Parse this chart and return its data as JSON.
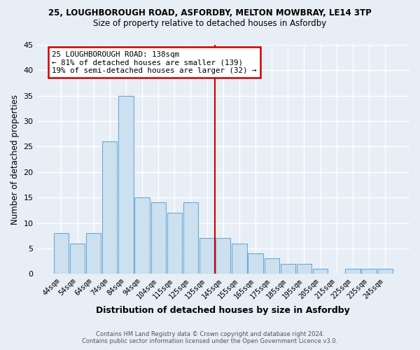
{
  "title1": "25, LOUGHBOROUGH ROAD, ASFORDBY, MELTON MOWBRAY, LE14 3TP",
  "title2": "Size of property relative to detached houses in Asfordby",
  "xlabel": "Distribution of detached houses by size in Asfordby",
  "ylabel": "Number of detached properties",
  "bin_labels": [
    "44sqm",
    "54sqm",
    "64sqm",
    "74sqm",
    "84sqm",
    "94sqm",
    "104sqm",
    "115sqm",
    "125sqm",
    "135sqm",
    "145sqm",
    "155sqm",
    "165sqm",
    "175sqm",
    "185sqm",
    "195sqm",
    "205sqm",
    "215sqm",
    "225sqm",
    "235sqm",
    "245sqm"
  ],
  "bin_values": [
    8,
    6,
    8,
    26,
    35,
    15,
    14,
    12,
    14,
    7,
    7,
    6,
    4,
    3,
    2,
    2,
    1,
    0,
    1,
    1,
    1
  ],
  "bar_color": "#cce0f0",
  "bar_edge_color": "#6aaad4",
  "vline_color": "#cc0000",
  "vline_pos": 9.5,
  "ylim": [
    0,
    45
  ],
  "annotation_line1": "25 LOUGHBOROUGH ROAD: 138sqm",
  "annotation_line2": "← 81% of detached houses are smaller (139)",
  "annotation_line3": "19% of semi-detached houses are larger (32) →",
  "annotation_box_color": "#cc0000",
  "annotation_bg": "#ffffff",
  "footer1": "Contains HM Land Registry data © Crown copyright and database right 2024.",
  "footer2": "Contains public sector information licensed under the Open Government Licence v3.0.",
  "background_color": "#e8eef5",
  "grid_color": "#ffffff"
}
